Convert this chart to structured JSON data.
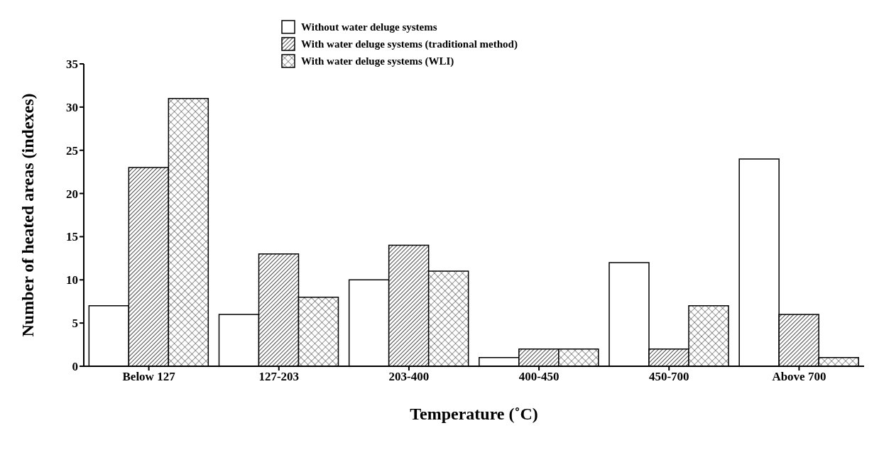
{
  "chart_data": {
    "type": "bar",
    "xlabel": "Temperature (˚C)",
    "ylabel": "Number of heated areas (indexes)",
    "categories": [
      "Below 127",
      "127-203",
      "203-400",
      "400-450",
      "450-700",
      "Above 700"
    ],
    "series": [
      {
        "name": "Without water deluge systems",
        "color": "#ffffff",
        "values": [
          7,
          6,
          10,
          1,
          12,
          24
        ]
      },
      {
        "name": "With water deluge systems (traditional method)",
        "color": "#000000",
        "values": [
          23,
          13,
          14,
          2,
          2,
          6
        ]
      },
      {
        "name": "With water deluge systems (WLI)",
        "color": "#000000",
        "values": [
          31,
          8,
          11,
          2,
          7,
          1
        ]
      }
    ],
    "ylim": [
      0,
      35
    ],
    "yticks": [
      0,
      5,
      10,
      15,
      20,
      25,
      30,
      35
    ],
    "grid": false,
    "legend": "top"
  }
}
